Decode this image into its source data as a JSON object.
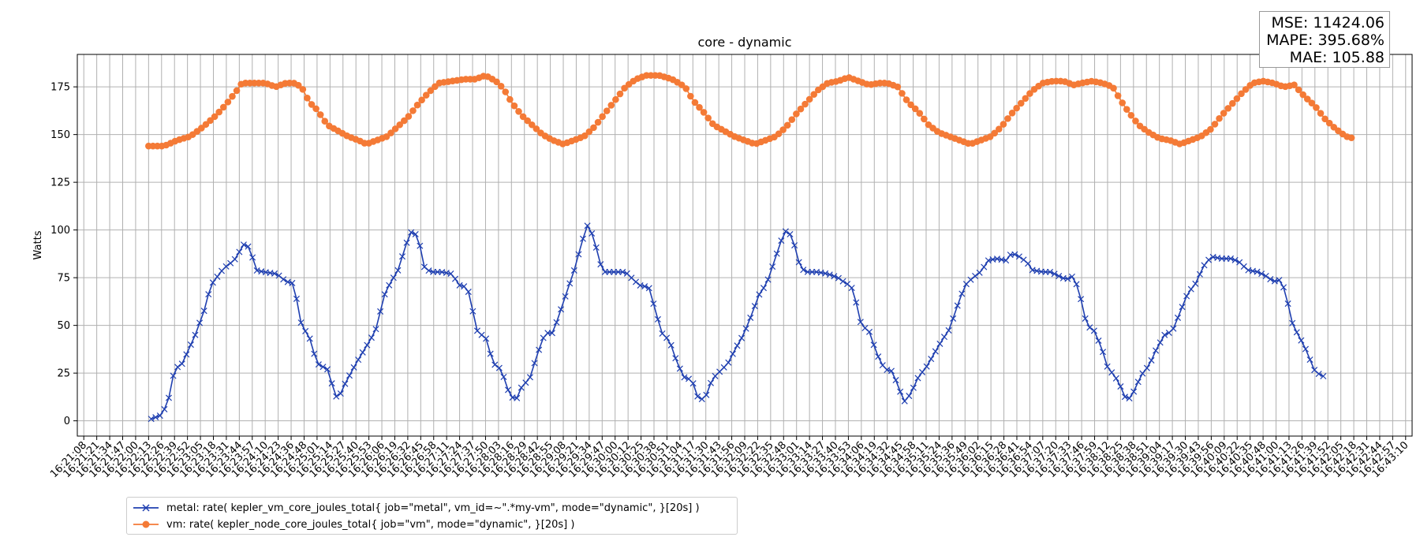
{
  "stats": {
    "mse": "MSE: 11424.06",
    "mape": "MAPE: 395.68%",
    "mae": "MAE: 105.88"
  },
  "legend": {
    "items": [
      {
        "label": "metal: rate( kepler_vm_core_joules_total{ job=\"metal\", vm_id=~\".*my-vm\", mode=\"dynamic\", }[20s] )",
        "color": "#1f3fb0",
        "marker": "x"
      },
      {
        "label": "vm: rate( kepler_node_core_joules_total{ job=\"vm\", mode=\"dynamic\", }[20s] )",
        "color": "#f47a36",
        "marker": "circle"
      }
    ]
  },
  "chart_data": {
    "type": "line",
    "title": "core - dynamic",
    "xlabel": "",
    "ylabel": "Watts",
    "ylim": [
      -8,
      192
    ],
    "yticks": [
      0,
      25,
      50,
      75,
      100,
      125,
      150,
      175
    ],
    "xticks": [
      "16:21:08",
      "16:21:21",
      "16:21:34",
      "16:21:47",
      "16:22:00",
      "16:22:13",
      "16:22:26",
      "16:22:39",
      "16:22:52",
      "16:23:05",
      "16:23:18",
      "16:23:31",
      "16:23:44",
      "16:23:57",
      "16:24:10",
      "16:24:23",
      "16:24:36",
      "16:24:48",
      "16:25:01",
      "16:25:14",
      "16:25:27",
      "16:25:40",
      "16:25:53",
      "16:26:06",
      "16:26:19",
      "16:26:32",
      "16:26:45",
      "16:26:58",
      "16:27:11",
      "16:27:24",
      "16:27:37",
      "16:27:50",
      "16:28:03",
      "16:28:16",
      "16:28:29",
      "16:28:42",
      "16:28:55",
      "16:29:08",
      "16:29:21",
      "16:29:34",
      "16:29:47",
      "16:30:00",
      "16:30:12",
      "16:30:25",
      "16:30:38",
      "16:30:51",
      "16:31:04",
      "16:31:17",
      "16:31:30",
      "16:31:43",
      "16:31:56",
      "16:32:09",
      "16:32:22",
      "16:32:35",
      "16:32:48",
      "16:33:01",
      "16:33:14",
      "16:33:27",
      "16:33:40",
      "16:33:53",
      "16:34:06",
      "16:34:19",
      "16:34:32",
      "16:34:45",
      "16:34:58",
      "16:35:11",
      "16:35:24",
      "16:35:36",
      "16:35:49",
      "16:36:02",
      "16:36:15",
      "16:36:28",
      "16:36:41",
      "16:36:54",
      "16:37:07",
      "16:37:20",
      "16:37:33",
      "16:37:46",
      "16:37:59",
      "16:38:12",
      "16:38:25",
      "16:38:38",
      "16:38:51",
      "16:39:04",
      "16:39:17",
      "16:39:30",
      "16:39:43",
      "16:39:56",
      "16:40:09",
      "16:40:22",
      "16:40:35",
      "16:40:48",
      "16:41:00",
      "16:41:13",
      "16:41:26",
      "16:41:39",
      "16:41:52",
      "16:42:05",
      "16:42:18",
      "16:42:31",
      "16:42:44",
      "16:42:57",
      "16:43:10"
    ],
    "grid": true,
    "series": [
      {
        "name": "metal: rate( kepler_vm_core_joules_total{ job=\"metal\", vm_id=~\".*my-vm\", mode=\"dynamic\", }[20s] )",
        "color": "#1f3fb0",
        "marker": "x",
        "keypoints": [
          [
            5.2,
            1
          ],
          [
            6.0,
            3
          ],
          [
            6.5,
            10
          ],
          [
            7.0,
            27
          ],
          [
            7.6,
            30
          ],
          [
            8.6,
            45
          ],
          [
            9.3,
            58
          ],
          [
            9.8,
            71
          ],
          [
            10.8,
            80
          ],
          [
            11.6,
            84
          ],
          [
            12.4,
            93
          ],
          [
            12.9,
            90
          ],
          [
            13.2,
            79
          ],
          [
            13.9,
            78
          ],
          [
            14.9,
            77
          ],
          [
            15.6,
            73
          ],
          [
            16.2,
            72
          ],
          [
            16.8,
            50
          ],
          [
            17.4,
            44
          ],
          [
            18.0,
            30
          ],
          [
            18.8,
            27
          ],
          [
            19.4,
            14
          ],
          [
            19.6,
            11
          ],
          [
            20.2,
            20
          ],
          [
            21.0,
            30
          ],
          [
            21.8,
            39
          ],
          [
            22.5,
            47
          ],
          [
            23.2,
            66
          ],
          [
            23.7,
            73
          ],
          [
            24.2,
            78
          ],
          [
            24.9,
            93
          ],
          [
            25.4,
            101
          ],
          [
            25.9,
            93
          ],
          [
            26.3,
            80
          ],
          [
            26.8,
            78
          ],
          [
            27.6,
            78
          ],
          [
            28.4,
            77
          ],
          [
            29.0,
            71
          ],
          [
            29.6,
            70
          ],
          [
            30.0,
            58
          ],
          [
            30.4,
            46
          ],
          [
            31.0,
            44
          ],
          [
            31.6,
            30
          ],
          [
            32.2,
            27
          ],
          [
            32.8,
            15
          ],
          [
            33.3,
            10
          ],
          [
            33.8,
            18
          ],
          [
            34.4,
            22
          ],
          [
            35.0,
            35
          ],
          [
            35.6,
            46
          ],
          [
            36.2,
            46
          ],
          [
            36.8,
            58
          ],
          [
            37.4,
            70
          ],
          [
            37.9,
            80
          ],
          [
            38.4,
            93
          ],
          [
            38.9,
            103
          ],
          [
            39.4,
            95
          ],
          [
            39.8,
            83
          ],
          [
            40.2,
            78
          ],
          [
            41.0,
            78
          ],
          [
            41.8,
            78
          ],
          [
            42.4,
            74
          ],
          [
            42.9,
            71
          ],
          [
            43.6,
            70
          ],
          [
            44.1,
            58
          ],
          [
            44.6,
            46
          ],
          [
            45.2,
            42
          ],
          [
            45.8,
            30
          ],
          [
            46.4,
            22
          ],
          [
            46.9,
            22
          ],
          [
            47.4,
            12
          ],
          [
            47.9,
            11
          ],
          [
            48.5,
            22
          ],
          [
            49.1,
            26
          ],
          [
            49.7,
            30
          ],
          [
            50.3,
            38
          ],
          [
            50.9,
            45
          ],
          [
            51.5,
            55
          ],
          [
            52.1,
            66
          ],
          [
            52.7,
            72
          ],
          [
            53.3,
            84
          ],
          [
            53.9,
            96
          ],
          [
            54.3,
            101
          ],
          [
            54.8,
            93
          ],
          [
            55.3,
            80
          ],
          [
            55.8,
            78
          ],
          [
            56.6,
            78
          ],
          [
            57.4,
            77
          ],
          [
            58.2,
            75
          ],
          [
            58.8,
            72
          ],
          [
            59.2,
            71
          ],
          [
            59.6,
            62
          ],
          [
            60.0,
            50
          ],
          [
            60.6,
            47
          ],
          [
            61.2,
            35
          ],
          [
            61.8,
            27
          ],
          [
            62.4,
            26
          ],
          [
            62.9,
            17
          ],
          [
            63.3,
            10
          ],
          [
            63.8,
            14
          ],
          [
            64.4,
            23
          ],
          [
            65.0,
            28
          ],
          [
            65.6,
            35
          ],
          [
            66.2,
            42
          ],
          [
            66.8,
            48
          ],
          [
            67.4,
            60
          ],
          [
            68.0,
            71
          ],
          [
            68.6,
            75
          ],
          [
            69.2,
            78
          ],
          [
            69.8,
            84
          ],
          [
            70.4,
            85
          ],
          [
            71.2,
            84
          ],
          [
            71.6,
            88
          ],
          [
            72.2,
            86
          ],
          [
            72.8,
            83
          ],
          [
            73.2,
            79
          ],
          [
            74.0,
            78
          ],
          [
            74.6,
            78
          ],
          [
            75.2,
            76
          ],
          [
            75.8,
            74
          ],
          [
            76.4,
            76
          ],
          [
            76.9,
            65
          ],
          [
            77.4,
            50
          ],
          [
            78.0,
            47
          ],
          [
            78.6,
            37
          ],
          [
            79.0,
            28
          ],
          [
            79.6,
            23
          ],
          [
            80.0,
            18
          ],
          [
            80.5,
            10
          ],
          [
            81.0,
            15
          ],
          [
            81.6,
            24
          ],
          [
            82.2,
            29
          ],
          [
            82.8,
            38
          ],
          [
            83.4,
            45
          ],
          [
            84.0,
            47
          ],
          [
            84.6,
            57
          ],
          [
            85.2,
            67
          ],
          [
            85.8,
            72
          ],
          [
            86.4,
            81
          ],
          [
            87.0,
            86
          ],
          [
            87.8,
            85
          ],
          [
            88.6,
            85
          ],
          [
            89.2,
            83
          ],
          [
            89.8,
            79
          ],
          [
            90.6,
            78
          ],
          [
            91.2,
            76
          ],
          [
            91.8,
            73
          ],
          [
            92.4,
            74
          ],
          [
            92.8,
            65
          ],
          [
            93.3,
            50
          ],
          [
            93.8,
            44
          ],
          [
            94.4,
            36
          ],
          [
            94.9,
            27
          ],
          [
            95.4,
            24
          ],
          [
            95.8,
            23
          ]
        ]
      },
      {
        "name": "vm: rate( kepler_node_core_joules_total{ job=\"vm\", mode=\"dynamic\", }[20s] )",
        "color": "#f47a36",
        "marker": "circle",
        "keypoints": [
          [
            5.0,
            144
          ],
          [
            6.2,
            144
          ],
          [
            7.2,
            147
          ],
          [
            8.2,
            149
          ],
          [
            9.2,
            154
          ],
          [
            10.2,
            160
          ],
          [
            11.0,
            166
          ],
          [
            11.8,
            173
          ],
          [
            12.2,
            177
          ],
          [
            13.2,
            177
          ],
          [
            14.0,
            177
          ],
          [
            14.8,
            175
          ],
          [
            15.6,
            177
          ],
          [
            16.2,
            177
          ],
          [
            16.8,
            175
          ],
          [
            17.4,
            167
          ],
          [
            18.0,
            163
          ],
          [
            18.8,
            155
          ],
          [
            19.6,
            152
          ],
          [
            20.4,
            149
          ],
          [
            21.2,
            147
          ],
          [
            21.8,
            145
          ],
          [
            22.6,
            147
          ],
          [
            23.4,
            149
          ],
          [
            24.2,
            154
          ],
          [
            25.0,
            159
          ],
          [
            25.8,
            166
          ],
          [
            26.6,
            172
          ],
          [
            27.4,
            177
          ],
          [
            28.4,
            178
          ],
          [
            29.4,
            179
          ],
          [
            30.2,
            179
          ],
          [
            31.0,
            181
          ],
          [
            31.8,
            178
          ],
          [
            32.4,
            174
          ],
          [
            33.0,
            167
          ],
          [
            33.8,
            160
          ],
          [
            34.6,
            155
          ],
          [
            35.4,
            150
          ],
          [
            36.2,
            147
          ],
          [
            37.0,
            145
          ],
          [
            37.8,
            147
          ],
          [
            38.6,
            149
          ],
          [
            39.4,
            154
          ],
          [
            40.2,
            161
          ],
          [
            41.0,
            168
          ],
          [
            41.8,
            175
          ],
          [
            42.6,
            179
          ],
          [
            43.4,
            181
          ],
          [
            44.4,
            181
          ],
          [
            45.4,
            179
          ],
          [
            46.4,
            175
          ],
          [
            47.0,
            168
          ],
          [
            47.8,
            162
          ],
          [
            48.6,
            155
          ],
          [
            49.4,
            152
          ],
          [
            50.2,
            149
          ],
          [
            51.0,
            147
          ],
          [
            51.8,
            145
          ],
          [
            52.6,
            147
          ],
          [
            53.4,
            149
          ],
          [
            54.2,
            154
          ],
          [
            55.0,
            161
          ],
          [
            55.8,
            167
          ],
          [
            56.6,
            173
          ],
          [
            57.4,
            177
          ],
          [
            58.2,
            178
          ],
          [
            59.0,
            180
          ],
          [
            59.8,
            178
          ],
          [
            60.6,
            176
          ],
          [
            61.4,
            177
          ],
          [
            62.0,
            177
          ],
          [
            62.8,
            175
          ],
          [
            63.6,
            167
          ],
          [
            64.4,
            162
          ],
          [
            65.2,
            155
          ],
          [
            66.0,
            151
          ],
          [
            66.8,
            149
          ],
          [
            67.6,
            147
          ],
          [
            68.4,
            145
          ],
          [
            69.2,
            147
          ],
          [
            70.0,
            149
          ],
          [
            70.8,
            154
          ],
          [
            71.6,
            161
          ],
          [
            72.4,
            167
          ],
          [
            73.2,
            173
          ],
          [
            74.0,
            177
          ],
          [
            74.8,
            178
          ],
          [
            75.6,
            178
          ],
          [
            76.4,
            176
          ],
          [
            77.0,
            177
          ],
          [
            77.8,
            178
          ],
          [
            78.6,
            177
          ],
          [
            79.4,
            175
          ],
          [
            80.0,
            168
          ],
          [
            80.6,
            162
          ],
          [
            81.4,
            155
          ],
          [
            82.2,
            151
          ],
          [
            83.0,
            148
          ],
          [
            83.8,
            147
          ],
          [
            84.6,
            145
          ],
          [
            85.4,
            147
          ],
          [
            86.2,
            149
          ],
          [
            87.0,
            153
          ],
          [
            87.8,
            160
          ],
          [
            88.6,
            166
          ],
          [
            89.4,
            172
          ],
          [
            90.2,
            177
          ],
          [
            91.0,
            178
          ],
          [
            91.8,
            177
          ],
          [
            92.6,
            175
          ],
          [
            93.4,
            176
          ],
          [
            94.2,
            170
          ],
          [
            95.0,
            165
          ],
          [
            95.8,
            158
          ],
          [
            96.6,
            153
          ],
          [
            97.4,
            149
          ],
          [
            98.0,
            148
          ]
        ]
      }
    ]
  }
}
